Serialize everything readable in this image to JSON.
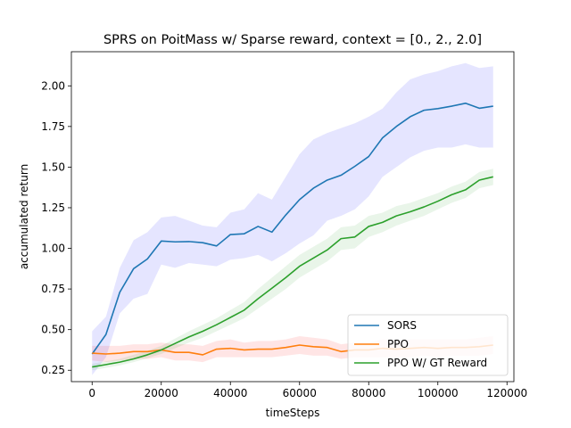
{
  "chart_data": {
    "type": "line",
    "title": "SPRS on PoitMass w/ Sparse reward, context = [0., 2., 2.0]",
    "xlabel": "timeSteps",
    "ylabel": "accumulated return",
    "xlim": [
      -6000,
      122000
    ],
    "ylim": [
      0.18,
      2.21
    ],
    "xticks": [
      0,
      20000,
      40000,
      60000,
      80000,
      100000,
      120000
    ],
    "xtick_labels": [
      "0",
      "20000",
      "40000",
      "60000",
      "80000",
      "100000",
      "120000"
    ],
    "yticks": [
      0.25,
      0.5,
      0.75,
      1.0,
      1.25,
      1.5,
      1.75,
      2.0
    ],
    "ytick_labels": [
      "0.25",
      "0.50",
      "0.75",
      "1.00",
      "1.25",
      "1.50",
      "1.75",
      "2.00"
    ],
    "grid": false,
    "legend_position": "bottom-right",
    "x": [
      0,
      4000,
      8000,
      12000,
      16000,
      20000,
      24000,
      28000,
      32000,
      36000,
      40000,
      44000,
      48000,
      52000,
      56000,
      60000,
      64000,
      68000,
      72000,
      76000,
      80000,
      84000,
      88000,
      92000,
      96000,
      100000,
      104000,
      108000,
      112000,
      116000
    ],
    "series": [
      {
        "name": "SORS",
        "color": "#1f77b4",
        "band_color": "#0000ff",
        "values": [
          0.35,
          0.47,
          0.73,
          0.875,
          0.935,
          1.045,
          1.04,
          1.042,
          1.035,
          1.015,
          1.085,
          1.09,
          1.135,
          1.1,
          1.205,
          1.3,
          1.37,
          1.42,
          1.45,
          1.505,
          1.565,
          1.68,
          1.75,
          1.81,
          1.85,
          1.86,
          1.875,
          1.893,
          1.862,
          1.875
        ],
        "lower": [
          0.22,
          0.33,
          0.6,
          0.69,
          0.72,
          0.9,
          0.88,
          0.91,
          0.9,
          0.89,
          0.93,
          0.94,
          0.96,
          0.92,
          0.97,
          1.03,
          1.08,
          1.17,
          1.2,
          1.24,
          1.32,
          1.44,
          1.5,
          1.56,
          1.6,
          1.62,
          1.62,
          1.64,
          1.62,
          1.62
        ],
        "upper": [
          0.49,
          0.58,
          0.88,
          1.05,
          1.1,
          1.19,
          1.2,
          1.17,
          1.14,
          1.13,
          1.22,
          1.24,
          1.34,
          1.3,
          1.44,
          1.58,
          1.67,
          1.71,
          1.74,
          1.77,
          1.81,
          1.86,
          1.96,
          2.04,
          2.07,
          2.09,
          2.12,
          2.14,
          2.11,
          2.12
        ]
      },
      {
        "name": "PPO",
        "color": "#ff7f0e",
        "band_color": "#ff0000",
        "values": [
          0.355,
          0.35,
          0.355,
          0.365,
          0.365,
          0.375,
          0.36,
          0.36,
          0.345,
          0.38,
          0.385,
          0.375,
          0.38,
          0.38,
          0.39,
          0.405,
          0.395,
          0.39,
          0.365,
          0.375,
          0.375,
          0.385,
          0.38,
          0.385,
          0.39,
          0.385,
          0.39,
          0.39,
          0.395,
          0.405
        ],
        "lower": [
          0.31,
          0.3,
          0.31,
          0.32,
          0.32,
          0.33,
          0.31,
          0.31,
          0.3,
          0.33,
          0.33,
          0.33,
          0.33,
          0.33,
          0.34,
          0.35,
          0.34,
          0.34,
          0.32,
          0.33,
          0.33,
          0.33,
          0.33,
          0.33,
          0.34,
          0.33,
          0.34,
          0.34,
          0.34,
          0.35
        ],
        "upper": [
          0.4,
          0.4,
          0.4,
          0.41,
          0.41,
          0.42,
          0.41,
          0.41,
          0.4,
          0.43,
          0.44,
          0.42,
          0.43,
          0.43,
          0.44,
          0.46,
          0.45,
          0.44,
          0.41,
          0.42,
          0.42,
          0.44,
          0.43,
          0.44,
          0.44,
          0.44,
          0.44,
          0.44,
          0.45,
          0.46
        ]
      },
      {
        "name": "PPO W/ GT Reward",
        "color": "#2ca02c",
        "band_color": "#2ca02c",
        "values": [
          0.27,
          0.285,
          0.3,
          0.32,
          0.345,
          0.375,
          0.415,
          0.455,
          0.49,
          0.53,
          0.575,
          0.62,
          0.69,
          0.755,
          0.82,
          0.89,
          0.94,
          0.99,
          1.06,
          1.07,
          1.135,
          1.16,
          1.2,
          1.225,
          1.255,
          1.29,
          1.33,
          1.36,
          1.42,
          1.44
        ],
        "lower": [
          0.25,
          0.265,
          0.28,
          0.3,
          0.325,
          0.35,
          0.385,
          0.42,
          0.45,
          0.49,
          0.53,
          0.57,
          0.63,
          0.69,
          0.75,
          0.82,
          0.87,
          0.92,
          0.99,
          1.0,
          1.07,
          1.1,
          1.14,
          1.17,
          1.2,
          1.24,
          1.28,
          1.31,
          1.37,
          1.39
        ],
        "upper": [
          0.29,
          0.305,
          0.32,
          0.345,
          0.37,
          0.4,
          0.445,
          0.49,
          0.53,
          0.57,
          0.62,
          0.67,
          0.75,
          0.82,
          0.89,
          0.96,
          1.01,
          1.06,
          1.13,
          1.14,
          1.2,
          1.22,
          1.26,
          1.28,
          1.31,
          1.34,
          1.38,
          1.41,
          1.47,
          1.49
        ]
      }
    ]
  }
}
